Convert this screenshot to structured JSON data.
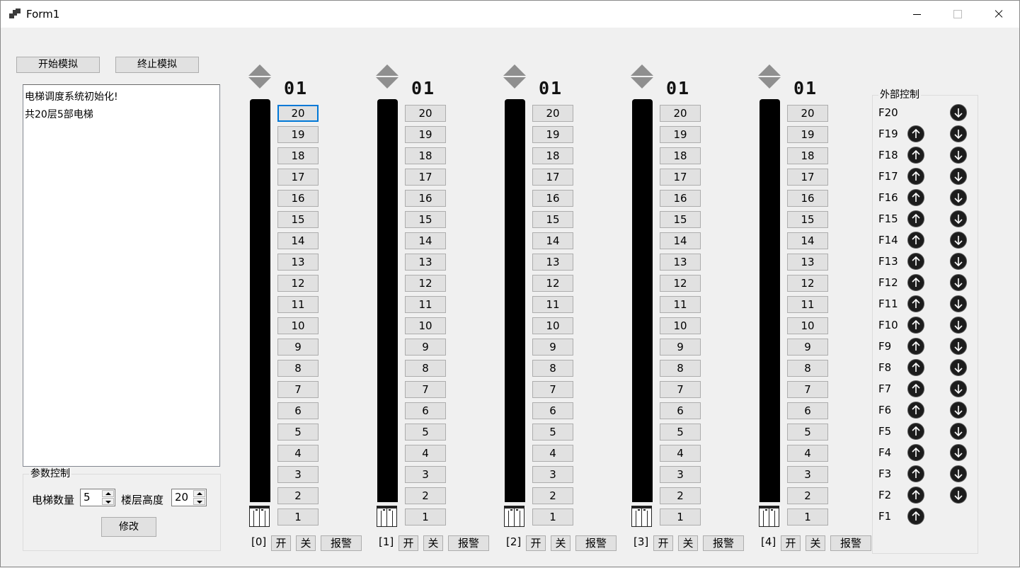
{
  "window": {
    "title": "Form1",
    "minimize_icon": "minimize-icon",
    "maximize_icon": "maximize-icon",
    "close_icon": "close-icon"
  },
  "toolbar": {
    "start_label": "开始模拟",
    "stop_label": "终止模拟"
  },
  "log": {
    "lines": [
      "电梯调度系统初始化!",
      "共20层5部电梯"
    ]
  },
  "params": {
    "group_label": "参数控制",
    "count_label": "电梯数量",
    "count_value": "5",
    "height_label": "楼层高度",
    "height_value": "20",
    "modify_label": "修改"
  },
  "elevators": [
    {
      "label": "[0]",
      "display": "01",
      "open": "开",
      "close": "关",
      "alarm": "报警"
    },
    {
      "label": "[1]",
      "display": "01",
      "open": "开",
      "close": "关",
      "alarm": "报警"
    },
    {
      "label": "[2]",
      "display": "01",
      "open": "开",
      "close": "关",
      "alarm": "报警"
    },
    {
      "label": "[3]",
      "display": "01",
      "open": "开",
      "close": "关",
      "alarm": "报警"
    },
    {
      "label": "[4]",
      "display": "01",
      "open": "开",
      "close": "关",
      "alarm": "报警"
    }
  ],
  "floors": [
    "20",
    "19",
    "18",
    "17",
    "16",
    "15",
    "14",
    "13",
    "12",
    "11",
    "10",
    "9",
    "8",
    "7",
    "6",
    "5",
    "4",
    "3",
    "2",
    "1"
  ],
  "external": {
    "group_label": "外部控制",
    "rows": [
      "F20",
      "F19",
      "F18",
      "F17",
      "F16",
      "F15",
      "F14",
      "F13",
      "F12",
      "F11",
      "F10",
      "F9",
      "F8",
      "F7",
      "F6",
      "F5",
      "F4",
      "F3",
      "F2",
      "F1"
    ]
  },
  "colors": {
    "accent": "#0078d7",
    "button_bg": "#e1e1e1",
    "shaft": "#000000",
    "indicator": "#8f8f8f"
  }
}
